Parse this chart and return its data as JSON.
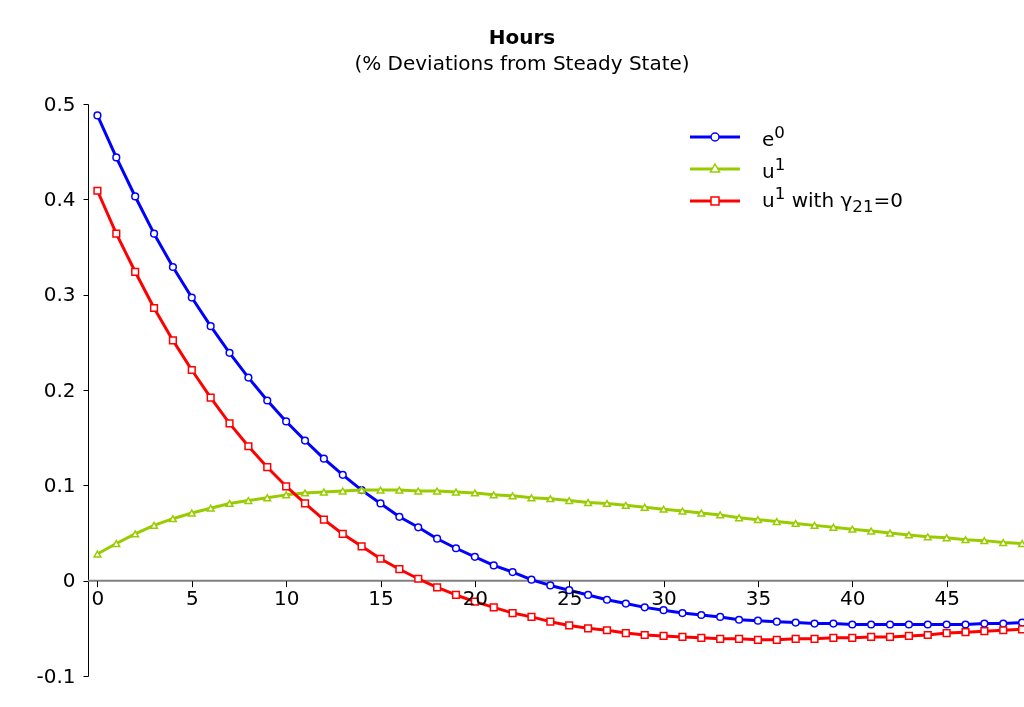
{
  "chart_data": {
    "type": "line",
    "title": "Hours",
    "subtitle": "(% Deviations from Steady State)",
    "x": [
      0,
      1,
      2,
      3,
      4,
      5,
      6,
      7,
      8,
      9,
      10,
      11,
      12,
      13,
      14,
      15,
      16,
      17,
      18,
      19,
      20,
      21,
      22,
      23,
      24,
      25,
      26,
      27,
      28,
      29,
      30,
      31,
      32,
      33,
      34,
      35,
      36,
      37,
      38,
      39,
      40,
      41,
      42,
      43,
      44,
      45,
      46,
      47,
      48,
      49
    ],
    "series": [
      {
        "name": "e$^{0}$",
        "color": "#0000ff",
        "marker": "circle",
        "values": [
          0.488,
          0.444,
          0.403,
          0.364,
          0.329,
          0.297,
          0.267,
          0.239,
          0.213,
          0.189,
          0.167,
          0.147,
          0.128,
          0.111,
          0.095,
          0.081,
          0.067,
          0.056,
          0.044,
          0.034,
          0.025,
          0.016,
          0.009,
          0.001,
          -0.005,
          -0.01,
          -0.015,
          -0.02,
          -0.024,
          -0.028,
          -0.031,
          -0.034,
          -0.036,
          -0.038,
          -0.041,
          -0.042,
          -0.043,
          -0.044,
          -0.045,
          -0.045,
          -0.046,
          -0.046,
          -0.046,
          -0.046,
          -0.046,
          -0.046,
          -0.046,
          -0.045,
          -0.045,
          -0.044
        ]
      },
      {
        "name": "u$^{1}$",
        "color": "#99cc00",
        "marker": "triangle",
        "values": [
          0.028,
          0.039,
          0.049,
          0.058,
          0.065,
          0.071,
          0.076,
          0.081,
          0.084,
          0.087,
          0.09,
          0.092,
          0.093,
          0.094,
          0.095,
          0.095,
          0.095,
          0.094,
          0.094,
          0.093,
          0.092,
          0.09,
          0.089,
          0.087,
          0.086,
          0.084,
          0.082,
          0.081,
          0.079,
          0.077,
          0.075,
          0.073,
          0.071,
          0.069,
          0.066,
          0.064,
          0.062,
          0.06,
          0.058,
          0.056,
          0.054,
          0.052,
          0.05,
          0.048,
          0.046,
          0.045,
          0.043,
          0.042,
          0.04,
          0.039
        ]
      },
      {
        "name": "u$^{1}$  with  γ$_{21}$=0",
        "color": "#ff0000",
        "marker": "square",
        "values": [
          0.409,
          0.364,
          0.324,
          0.286,
          0.252,
          0.221,
          0.192,
          0.165,
          0.141,
          0.119,
          0.099,
          0.081,
          0.064,
          0.049,
          0.036,
          0.023,
          0.012,
          0.002,
          -0.007,
          -0.015,
          -0.022,
          -0.028,
          -0.034,
          -0.038,
          -0.043,
          -0.047,
          -0.05,
          -0.052,
          -0.055,
          -0.057,
          -0.058,
          -0.059,
          -0.06,
          -0.061,
          -0.061,
          -0.062,
          -0.062,
          -0.061,
          -0.061,
          -0.06,
          -0.06,
          -0.059,
          -0.059,
          -0.058,
          -0.057,
          -0.055,
          -0.054,
          -0.053,
          -0.052,
          -0.051
        ]
      }
    ],
    "xlim": [
      -0.5,
      49.1
    ],
    "xticks": [
      0,
      5,
      10,
      15,
      20,
      25,
      30,
      35,
      40,
      45
    ],
    "ylim": [
      -0.1,
      0.5
    ],
    "yticks": [
      -0.1,
      0,
      0.1,
      0.2,
      0.3,
      0.4,
      0.5
    ],
    "grid": false,
    "legend": "top right",
    "line_style": "solid"
  }
}
